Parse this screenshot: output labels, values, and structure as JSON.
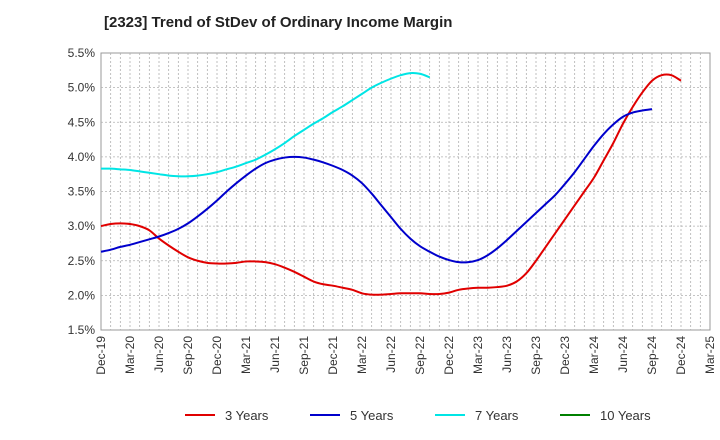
{
  "title": "[2323]  Trend of StDev of Ordinary Income Margin",
  "chart_data": {
    "type": "line",
    "title": "[2323]  Trend of StDev of Ordinary Income Margin",
    "xlabel": "",
    "ylabel": "",
    "ylim": [
      1.5,
      5.5
    ],
    "yticks": [
      "1.5%",
      "2.0%",
      "2.5%",
      "3.0%",
      "3.5%",
      "4.0%",
      "4.5%",
      "5.0%",
      "5.5%"
    ],
    "x_ticks": [
      "Dec-19",
      "Mar-20",
      "Jun-20",
      "Sep-20",
      "Dec-20",
      "Mar-21",
      "Jun-21",
      "Sep-21",
      "Dec-21",
      "Mar-22",
      "Jun-22",
      "Sep-22",
      "Dec-22",
      "Mar-23",
      "Jun-23",
      "Sep-23",
      "Dec-23",
      "Mar-24",
      "Jun-24",
      "Sep-24",
      "Dec-24",
      "Mar-25"
    ],
    "grid": true,
    "legend_position": "bottom",
    "series": [
      {
        "name": "3 Years",
        "color": "#e00000",
        "points": [
          [
            "Dec-19",
            3.0
          ],
          [
            "Jan-20",
            3.03
          ],
          [
            "Feb-20",
            3.04
          ],
          [
            "Mar-20",
            3.03
          ],
          [
            "Apr-20",
            3.0
          ],
          [
            "May-20",
            2.94
          ],
          [
            "Jun-20",
            2.82
          ],
          [
            "Jul-20",
            2.72
          ],
          [
            "Aug-20",
            2.63
          ],
          [
            "Sep-20",
            2.55
          ],
          [
            "Oct-20",
            2.5
          ],
          [
            "Nov-20",
            2.47
          ],
          [
            "Dec-20",
            2.46
          ],
          [
            "Jan-21",
            2.46
          ],
          [
            "Feb-21",
            2.47
          ],
          [
            "Mar-21",
            2.49
          ],
          [
            "Apr-21",
            2.49
          ],
          [
            "May-21",
            2.48
          ],
          [
            "Jun-21",
            2.45
          ],
          [
            "Jul-21",
            2.4
          ],
          [
            "Aug-21",
            2.34
          ],
          [
            "Sep-21",
            2.27
          ],
          [
            "Oct-21",
            2.2
          ],
          [
            "Nov-21",
            2.16
          ],
          [
            "Dec-21",
            2.14
          ],
          [
            "Jan-22",
            2.11
          ],
          [
            "Feb-22",
            2.08
          ],
          [
            "Mar-22",
            2.03
          ],
          [
            "Apr-22",
            2.01
          ],
          [
            "May-22",
            2.01
          ],
          [
            "Jun-22",
            2.02
          ],
          [
            "Jul-22",
            2.03
          ],
          [
            "Aug-22",
            2.03
          ],
          [
            "Sep-22",
            2.03
          ],
          [
            "Oct-22",
            2.02
          ],
          [
            "Nov-22",
            2.02
          ],
          [
            "Dec-22",
            2.04
          ],
          [
            "Jan-23",
            2.08
          ],
          [
            "Feb-23",
            2.1
          ],
          [
            "Mar-23",
            2.11
          ],
          [
            "Apr-23",
            2.11
          ],
          [
            "May-23",
            2.12
          ],
          [
            "Jun-23",
            2.14
          ],
          [
            "Jul-23",
            2.2
          ],
          [
            "Aug-23",
            2.32
          ],
          [
            "Sep-23",
            2.5
          ],
          [
            "Oct-23",
            2.7
          ],
          [
            "Nov-23",
            2.9
          ],
          [
            "Dec-23",
            3.1
          ],
          [
            "Jan-24",
            3.3
          ],
          [
            "Feb-24",
            3.5
          ],
          [
            "Mar-24",
            3.7
          ],
          [
            "Apr-24",
            3.95
          ],
          [
            "May-24",
            4.2
          ],
          [
            "Jun-24",
            4.48
          ],
          [
            "Jul-24",
            4.72
          ],
          [
            "Aug-24",
            4.93
          ],
          [
            "Sep-24",
            5.1
          ],
          [
            "Oct-24",
            5.18
          ],
          [
            "Nov-24",
            5.18
          ],
          [
            "Dec-24",
            5.1
          ]
        ]
      },
      {
        "name": "5 Years",
        "color": "#0000cc",
        "points": [
          [
            "Dec-19",
            2.63
          ],
          [
            "Jan-20",
            2.66
          ],
          [
            "Feb-20",
            2.7
          ],
          [
            "Mar-20",
            2.73
          ],
          [
            "Apr-20",
            2.77
          ],
          [
            "May-20",
            2.81
          ],
          [
            "Jun-20",
            2.85
          ],
          [
            "Jul-20",
            2.9
          ],
          [
            "Aug-20",
            2.96
          ],
          [
            "Sep-20",
            3.04
          ],
          [
            "Oct-20",
            3.14
          ],
          [
            "Nov-20",
            3.25
          ],
          [
            "Dec-20",
            3.37
          ],
          [
            "Jan-21",
            3.5
          ],
          [
            "Feb-21",
            3.62
          ],
          [
            "Mar-21",
            3.73
          ],
          [
            "Apr-21",
            3.83
          ],
          [
            "May-21",
            3.91
          ],
          [
            "Jun-21",
            3.96
          ],
          [
            "Jul-21",
            3.99
          ],
          [
            "Aug-21",
            4.0
          ],
          [
            "Sep-21",
            3.99
          ],
          [
            "Oct-21",
            3.96
          ],
          [
            "Nov-21",
            3.92
          ],
          [
            "Dec-21",
            3.87
          ],
          [
            "Jan-22",
            3.81
          ],
          [
            "Feb-22",
            3.73
          ],
          [
            "Mar-22",
            3.62
          ],
          [
            "Apr-22",
            3.47
          ],
          [
            "May-22",
            3.3
          ],
          [
            "Jun-22",
            3.13
          ],
          [
            "Jul-22",
            2.96
          ],
          [
            "Aug-22",
            2.82
          ],
          [
            "Sep-22",
            2.71
          ],
          [
            "Oct-22",
            2.63
          ],
          [
            "Nov-22",
            2.56
          ],
          [
            "Dec-22",
            2.51
          ],
          [
            "Jan-23",
            2.48
          ],
          [
            "Feb-23",
            2.48
          ],
          [
            "Mar-23",
            2.51
          ],
          [
            "Apr-23",
            2.58
          ],
          [
            "May-23",
            2.68
          ],
          [
            "Jun-23",
            2.8
          ],
          [
            "Jul-23",
            2.93
          ],
          [
            "Aug-23",
            3.06
          ],
          [
            "Sep-23",
            3.19
          ],
          [
            "Oct-23",
            3.32
          ],
          [
            "Nov-23",
            3.45
          ],
          [
            "Dec-23",
            3.61
          ],
          [
            "Jan-24",
            3.78
          ],
          [
            "Feb-24",
            3.97
          ],
          [
            "Mar-24",
            4.16
          ],
          [
            "Apr-24",
            4.33
          ],
          [
            "May-24",
            4.47
          ],
          [
            "Jun-24",
            4.58
          ],
          [
            "Jul-24",
            4.64
          ],
          [
            "Aug-24",
            4.67
          ],
          [
            "Sep-24",
            4.69
          ]
        ]
      },
      {
        "name": "7 Years",
        "color": "#00e5e5",
        "points": [
          [
            "Dec-19",
            3.83
          ],
          [
            "Jan-20",
            3.83
          ],
          [
            "Feb-20",
            3.82
          ],
          [
            "Mar-20",
            3.81
          ],
          [
            "Apr-20",
            3.79
          ],
          [
            "May-20",
            3.77
          ],
          [
            "Jun-20",
            3.75
          ],
          [
            "Jul-20",
            3.73
          ],
          [
            "Aug-20",
            3.72
          ],
          [
            "Sep-20",
            3.72
          ],
          [
            "Oct-20",
            3.73
          ],
          [
            "Nov-20",
            3.75
          ],
          [
            "Dec-20",
            3.78
          ],
          [
            "Jan-21",
            3.82
          ],
          [
            "Feb-21",
            3.86
          ],
          [
            "Mar-21",
            3.91
          ],
          [
            "Apr-21",
            3.96
          ],
          [
            "May-21",
            4.03
          ],
          [
            "Jun-21",
            4.11
          ],
          [
            "Jul-21",
            4.2
          ],
          [
            "Aug-21",
            4.3
          ],
          [
            "Sep-21",
            4.39
          ],
          [
            "Oct-21",
            4.48
          ],
          [
            "Nov-21",
            4.56
          ],
          [
            "Dec-21",
            4.65
          ],
          [
            "Jan-22",
            4.73
          ],
          [
            "Feb-22",
            4.82
          ],
          [
            "Mar-22",
            4.91
          ],
          [
            "Apr-22",
            5.0
          ],
          [
            "May-22",
            5.07
          ],
          [
            "Jun-22",
            5.13
          ],
          [
            "Jul-22",
            5.18
          ],
          [
            "Aug-22",
            5.21
          ],
          [
            "Sep-22",
            5.2
          ],
          [
            "Oct-22",
            5.15
          ]
        ]
      },
      {
        "name": "10 Years",
        "color": "#008000",
        "points": []
      }
    ]
  }
}
